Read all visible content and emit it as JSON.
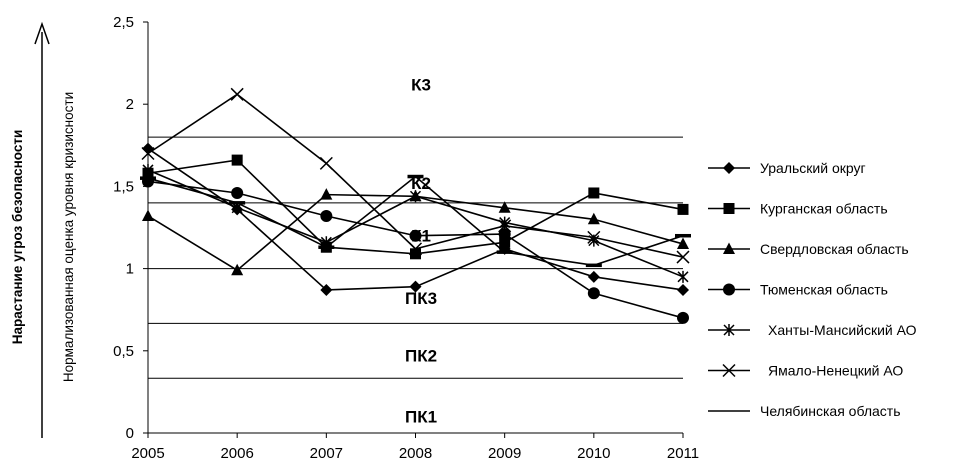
{
  "chart_data": {
    "type": "line",
    "x": [
      2005,
      2006,
      2007,
      2008,
      2009,
      2010,
      2011
    ],
    "x_tick_labels": [
      "2005",
      "2006",
      "2007",
      "2008",
      "2009",
      "2010",
      "2011"
    ],
    "ylim": [
      0,
      2.5
    ],
    "y_ticks": [
      0,
      0.5,
      1,
      1.5,
      2,
      2.5
    ],
    "y_tick_labels": [
      "0",
      "0,5",
      "1",
      "1,5",
      "2",
      "2,5"
    ],
    "ylabel": "Нормализованная оценка уровня кризисности",
    "outer_label": "Нарастание  угроз безопасности",
    "grid": false,
    "legend_position": "right",
    "thresholds": [
      {
        "label": "ПК1",
        "value": 0.333,
        "label_y": 0.1
      },
      {
        "label": "ПК2",
        "value": 0.667,
        "label_y": 0.47
      },
      {
        "label": "ПК3",
        "value": 1.0,
        "label_y": 0.82
      },
      {
        "label": "К1",
        "value": 1.4,
        "label_y": 1.2
      },
      {
        "label": "К2",
        "value": 1.8,
        "label_y": 1.52
      },
      {
        "label": "К3",
        "value": null,
        "label_y": 2.12
      }
    ],
    "series": [
      {
        "name": "Уральский округ",
        "marker": "diamond",
        "values": [
          1.73,
          1.36,
          0.87,
          0.89,
          1.12,
          0.95,
          0.87
        ]
      },
      {
        "name": "Курганская область",
        "marker": "square",
        "values": [
          1.58,
          1.66,
          1.13,
          1.09,
          1.16,
          1.46,
          1.36
        ]
      },
      {
        "name": "Свердловская область",
        "marker": "triangle",
        "values": [
          1.32,
          0.99,
          1.45,
          1.44,
          1.37,
          1.3,
          1.15
        ]
      },
      {
        "name": "Тюменская область",
        "marker": "circle",
        "values": [
          1.53,
          1.46,
          1.32,
          1.2,
          1.21,
          0.85,
          0.7
        ]
      },
      {
        "name": "Ханты-Мансийский АО",
        "marker": "star",
        "values": [
          1.6,
          1.37,
          1.16,
          1.44,
          1.28,
          1.17,
          0.95
        ]
      },
      {
        "name": "Ямало-Ненецкий АО",
        "marker": "x",
        "values": [
          1.7,
          2.06,
          1.64,
          1.12,
          1.26,
          1.19,
          1.07
        ]
      },
      {
        "name": "Челябинская область",
        "marker": "dash",
        "values": [
          1.55,
          1.4,
          1.13,
          1.56,
          1.1,
          1.02,
          1.2
        ]
      }
    ]
  }
}
